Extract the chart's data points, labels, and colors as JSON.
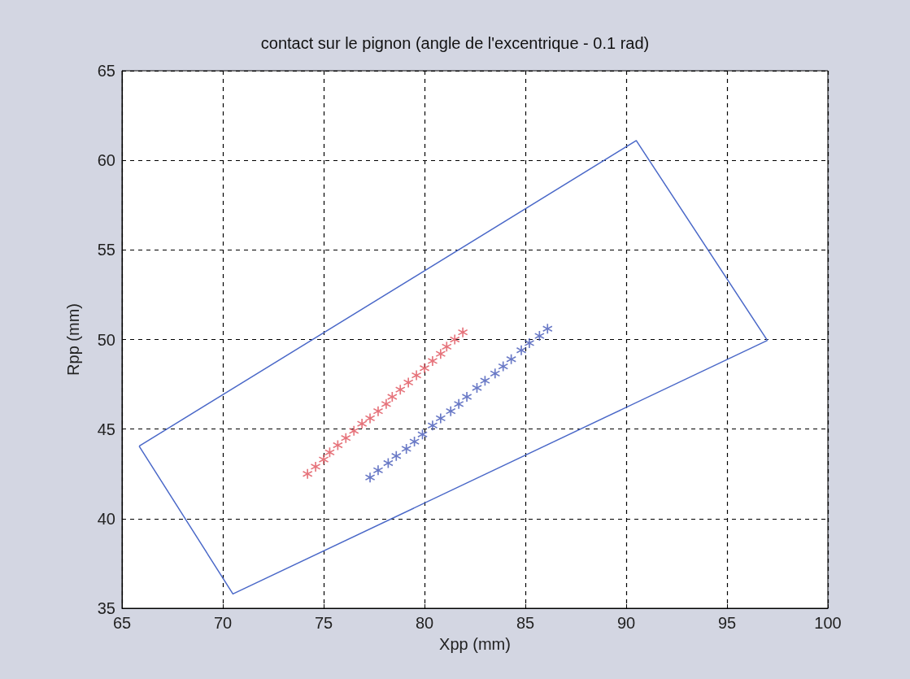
{
  "chart_data": {
    "type": "scatter",
    "title": "contact sur le pignon (angle de l'excentrique - 0.1 rad)",
    "xlabel": "Xpp (mm)",
    "ylabel": "Rpp (mm)",
    "xlim": [
      65,
      100
    ],
    "xticks": [
      65,
      70,
      75,
      80,
      85,
      90,
      95,
      100
    ],
    "ylim": [
      35,
      65
    ],
    "yticks": [
      35,
      40,
      45,
      50,
      55,
      60,
      65
    ],
    "grid": true,
    "series": [
      {
        "type": "line",
        "marker": "none",
        "color": "#4a68c8",
        "x": [
          65.85,
          90.5,
          97.0
        ],
        "values": [
          44.05,
          61.1,
          49.95
        ]
      },
      {
        "type": "line",
        "marker": "none",
        "color": "#4a68c8",
        "x": [
          65.85,
          70.5,
          97.0
        ],
        "values": [
          44.05,
          35.8,
          49.95
        ]
      },
      {
        "type": "scatter",
        "marker": "star",
        "color": "#e0505a",
        "x": [
          74.2,
          74.6,
          75.0,
          75.3,
          75.7,
          76.1,
          76.5,
          76.9,
          77.3,
          77.7,
          78.1,
          78.4,
          78.8,
          79.2,
          79.6,
          80.0,
          80.4,
          80.8,
          81.1,
          81.5,
          81.9
        ],
        "values": [
          42.5,
          42.9,
          43.3,
          43.7,
          44.1,
          44.5,
          44.9,
          45.3,
          45.6,
          46.0,
          46.4,
          46.8,
          47.2,
          47.6,
          48.0,
          48.4,
          48.8,
          49.2,
          49.6,
          50.0,
          50.4
        ]
      },
      {
        "type": "scatter",
        "marker": "star",
        "color": "#4458b8",
        "x": [
          77.3,
          77.7,
          78.2,
          78.6,
          79.1,
          79.5,
          79.9,
          80.4,
          80.8,
          81.3,
          81.7,
          82.1,
          82.6,
          83.0,
          83.5,
          83.9,
          84.3,
          84.8,
          85.2,
          85.7,
          86.1
        ],
        "values": [
          42.3,
          42.7,
          43.1,
          43.5,
          43.9,
          44.3,
          44.7,
          45.2,
          45.6,
          46.0,
          46.4,
          46.8,
          47.3,
          47.7,
          48.1,
          48.5,
          48.9,
          49.4,
          49.8,
          50.2,
          50.6
        ]
      }
    ]
  }
}
